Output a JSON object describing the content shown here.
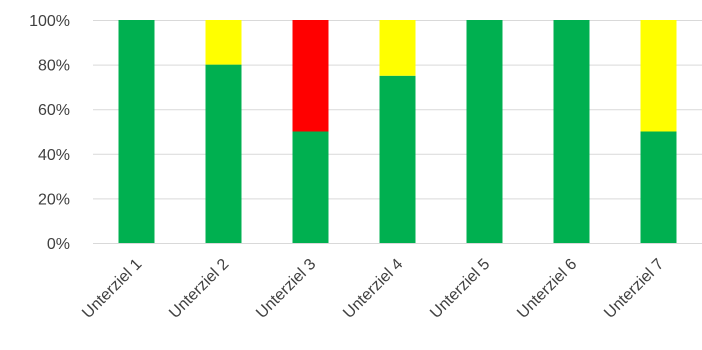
{
  "chart_data": {
    "type": "bar",
    "stacked": true,
    "percent": true,
    "categories": [
      "Unterziel 1",
      "Unterziel 2",
      "Unterziel 3",
      "Unterziel 4",
      "Unterziel 5",
      "Unterziel 6",
      "Unterziel 7"
    ],
    "series": [
      {
        "color": "#00b050",
        "values": [
          100,
          80,
          50,
          75,
          100,
          100,
          50
        ]
      },
      {
        "color": "#ffff00",
        "values": [
          0,
          20,
          0,
          25,
          0,
          0,
          50
        ]
      },
      {
        "color": "#ff0000",
        "values": [
          0,
          0,
          50,
          0,
          0,
          0,
          0
        ]
      }
    ],
    "yticks": [
      "0%",
      "20%",
      "40%",
      "60%",
      "80%",
      "100%"
    ],
    "ylim": [
      0,
      100
    ],
    "grid": true,
    "legend": "none",
    "title": "",
    "xlabel": "",
    "ylabel": ""
  }
}
